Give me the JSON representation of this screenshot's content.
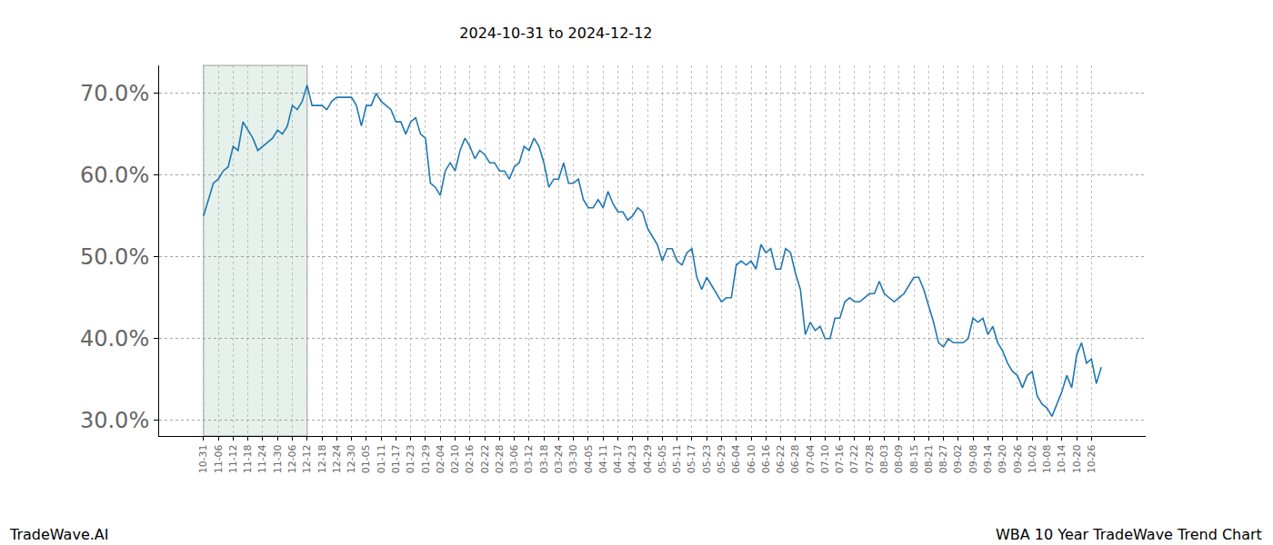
{
  "chart_data": {
    "type": "line",
    "title": "2024-10-31 to 2024-12-12",
    "annotations": [
      "TradeWave.AI",
      "WBA 10 Year TradeWave Trend Chart"
    ],
    "shaded_range": [
      "10-31",
      "12-12"
    ],
    "categories": [
      "10-31",
      null,
      null,
      "11-06",
      null,
      null,
      "11-12",
      null,
      null,
      "11-18",
      null,
      null,
      "11-24",
      null,
      null,
      "11-30",
      null,
      null,
      "12-06",
      null,
      null,
      "12-12",
      null,
      null,
      "12-18",
      null,
      null,
      "12-24",
      null,
      null,
      "12-30",
      null,
      null,
      "01-05",
      null,
      null,
      "01-11",
      null,
      null,
      "01-17",
      null,
      null,
      "01-23",
      null,
      null,
      "01-29",
      null,
      null,
      "02-04",
      null,
      null,
      "02-10",
      null,
      null,
      "02-16",
      null,
      null,
      "02-22",
      null,
      null,
      "02-28",
      null,
      null,
      "03-06",
      null,
      null,
      "03-12",
      null,
      null,
      "03-18",
      null,
      null,
      "03-24",
      null,
      null,
      "03-30",
      null,
      null,
      "04-05",
      null,
      null,
      "04-11",
      null,
      null,
      "04-17",
      null,
      null,
      "04-23",
      null,
      null,
      "04-29",
      null,
      null,
      "05-05",
      null,
      null,
      "05-11",
      null,
      null,
      "05-17",
      null,
      null,
      "05-23",
      null,
      null,
      "05-29",
      null,
      null,
      "06-04",
      null,
      null,
      "06-10",
      null,
      null,
      "06-16",
      null,
      null,
      "06-22",
      null,
      null,
      "06-28",
      null,
      null,
      "07-04",
      null,
      null,
      "07-10",
      null,
      null,
      "07-16",
      null,
      null,
      "07-22",
      null,
      null,
      "07-28",
      null,
      null,
      "08-03",
      null,
      null,
      "08-09",
      null,
      null,
      "08-15",
      null,
      null,
      "08-21",
      null,
      null,
      "08-27",
      null,
      null,
      "09-02",
      null,
      null,
      "09-08",
      null,
      null,
      "09-14",
      null,
      null,
      "09-20",
      null,
      null,
      "09-26",
      null,
      null,
      "10-02",
      null,
      null,
      "10-08",
      null,
      null,
      "10-14",
      null,
      null,
      "10-20",
      null,
      null,
      "10-26",
      null,
      null
    ],
    "series": [
      {
        "color": "#1f77b4",
        "values": [
          55,
          57,
          59,
          59.5,
          60.5,
          61,
          63.5,
          63,
          66.5,
          65.5,
          64.5,
          63,
          63.5,
          64,
          64.5,
          65.5,
          65,
          66,
          68.5,
          68,
          69,
          71,
          68.5,
          68.5,
          68.5,
          68,
          69,
          69.5,
          69.5,
          69.5,
          69.5,
          68.5,
          66,
          68.5,
          68.5,
          70,
          69,
          68.5,
          68,
          66.5,
          66.5,
          65,
          66.5,
          67,
          65,
          64.5,
          59,
          58.5,
          57.5,
          60.5,
          61.5,
          60.5,
          63,
          64.5,
          63.5,
          62,
          63,
          62.5,
          61.5,
          61.5,
          60.5,
          60.5,
          59.5,
          61,
          61.5,
          63.5,
          63,
          64.5,
          63.5,
          61.5,
          58.5,
          59.5,
          59.5,
          61.5,
          59,
          59,
          59.5,
          57,
          56,
          56,
          57,
          56,
          58,
          56.5,
          55.5,
          55.5,
          54.5,
          55,
          56,
          55.5,
          53.5,
          52.5,
          51.5,
          49.5,
          51,
          51,
          49.5,
          49,
          50.5,
          51,
          47.5,
          46,
          47.5,
          46.5,
          45.5,
          44.5,
          45,
          45,
          49,
          49.5,
          49,
          49.5,
          48.5,
          51.5,
          50.5,
          51,
          48.5,
          48.5,
          51,
          50.5,
          48,
          46,
          40.5,
          42,
          41,
          41.5,
          40,
          40,
          42.5,
          42.5,
          44.5,
          45,
          44.5,
          44.5,
          45,
          45.5,
          45.5,
          47,
          45.5,
          45,
          44.5,
          45,
          45.5,
          46.5,
          47.5,
          47.5,
          46,
          44,
          42,
          39.5,
          39,
          40,
          39.5,
          39.5,
          39.5,
          40,
          42.5,
          42,
          42.5,
          40.5,
          41.5,
          39.5,
          38.5,
          37,
          36,
          35.5,
          34,
          35.5,
          36,
          33,
          32,
          31.5,
          30.5,
          32,
          33.5,
          35.5,
          34,
          38,
          39.5,
          37,
          37.5,
          34.5,
          36.5
        ]
      }
    ],
    "ylim": [
      28.1,
      73.4
    ],
    "yticks": [
      {
        "value": 30,
        "label": "30.0%"
      },
      {
        "value": 40,
        "label": "40.0%"
      },
      {
        "value": 50,
        "label": "50.0%"
      },
      {
        "value": 60,
        "label": "60.0%"
      },
      {
        "value": 70,
        "label": "70.0%"
      }
    ],
    "grid": true
  }
}
